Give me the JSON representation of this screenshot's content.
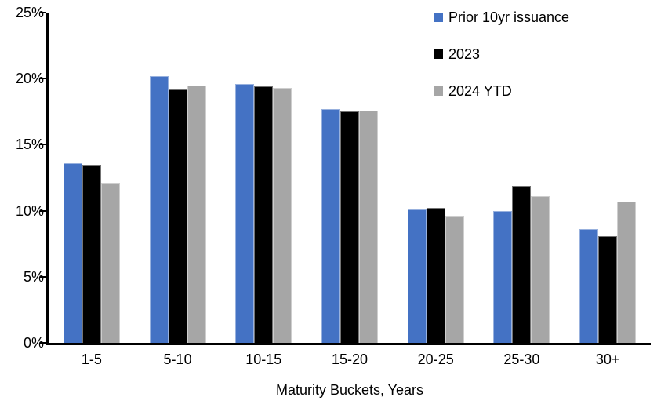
{
  "chart_data": {
    "type": "bar",
    "title": "",
    "categories": [
      "1-5",
      "5-10",
      "10-15",
      "15-20",
      "20-25",
      "25-30",
      "30+"
    ],
    "series": [
      {
        "name": "Prior 10yr issuance",
        "color": "#4472C4",
        "values": [
          13.6,
          20.2,
          19.6,
          17.7,
          10.1,
          10.0,
          8.6
        ]
      },
      {
        "name": "2023",
        "color": "#000000",
        "values": [
          13.5,
          19.2,
          19.4,
          17.5,
          10.2,
          11.9,
          8.1
        ]
      },
      {
        "name": "2024 YTD",
        "color": "#A6A6A6",
        "values": [
          12.1,
          19.5,
          19.3,
          17.6,
          9.6,
          11.1,
          10.7
        ]
      }
    ],
    "xlabel": "Maturity Buckets, Years",
    "ylabel": "",
    "ylim": [
      0,
      25
    ],
    "ytick_step": 5,
    "ytick_labels": [
      "0%",
      "5%",
      "10%",
      "15%",
      "20%",
      "25%"
    ],
    "grid": false,
    "legend_position": "top-right",
    "axis_color": "#000000"
  }
}
